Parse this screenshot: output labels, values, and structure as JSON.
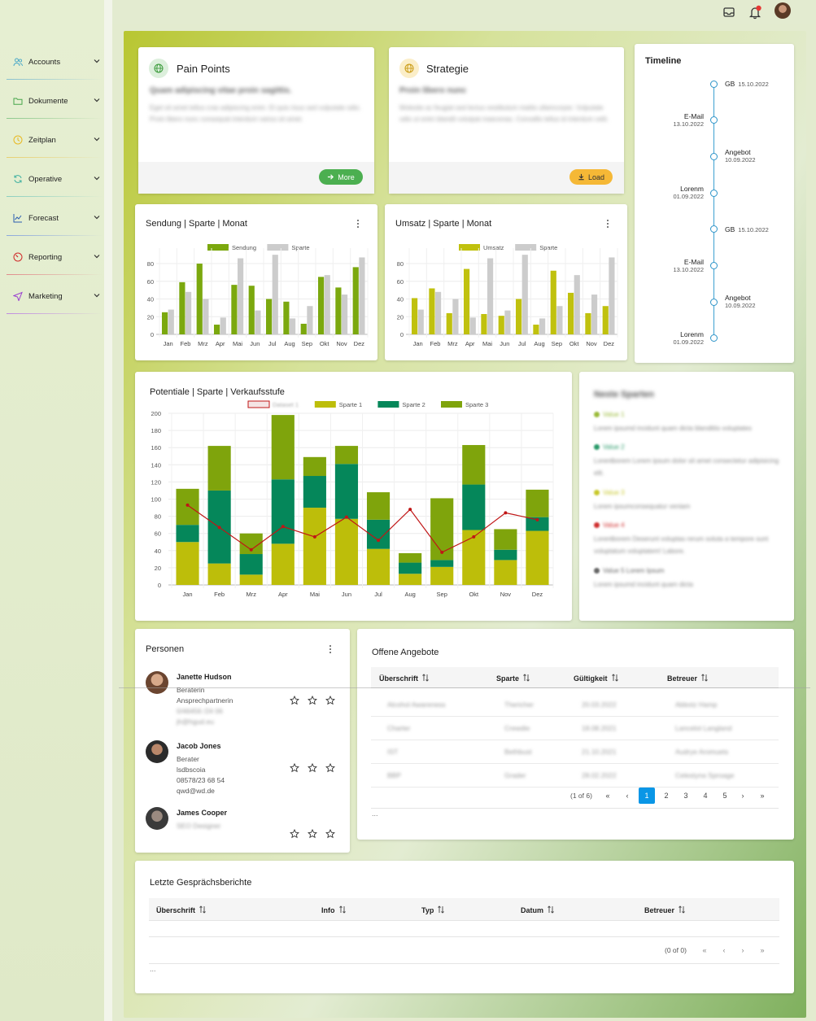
{
  "sidebar": {
    "items": [
      {
        "label": "Accounts",
        "icon": "users-icon",
        "color": "#4aa8c8"
      },
      {
        "label": "Dokumente",
        "icon": "folder-icon",
        "color": "#46a54a"
      },
      {
        "label": "Zeitplan",
        "icon": "clock-icon",
        "color": "#e8b820"
      },
      {
        "label": "Operative",
        "icon": "refresh-icon",
        "color": "#3fb0a0"
      },
      {
        "label": "Forecast",
        "icon": "chart-line-icon",
        "color": "#2a5db0"
      },
      {
        "label": "Reporting",
        "icon": "gauge-icon",
        "color": "#d02a2a"
      },
      {
        "label": "Marketing",
        "icon": "send-icon",
        "color": "#9a3fd0"
      }
    ]
  },
  "topbar": {
    "icons": [
      "inbox-icon",
      "bell-icon",
      "avatar"
    ]
  },
  "pain_points": {
    "title": "Pain Points",
    "subtitle": "Quam adipiscing vitae proin sagittis.",
    "body": "Eget sit amet tellus cras adipiscing enim. Et quis risus sed vulputate odio. Proin libero nunc consequat interdum varius sit amet.",
    "button": "More"
  },
  "strategie": {
    "title": "Strategie",
    "subtitle": "Proin libero nunc",
    "body": "Molestie ac feugiat sed lectus vestibulum mattis ullamcorper. Vulputate odio ut enim blandit volutpat maecenas. Convallis tellus id interdum velit.",
    "button": "Load"
  },
  "timeline": {
    "title": "Timeline",
    "events": [
      {
        "label": "GB",
        "date": "15.10.2022",
        "side": "right"
      },
      {
        "label": "E-Mail",
        "date": "13.10.2022",
        "side": "left"
      },
      {
        "label": "Angebot",
        "date": "10.09.2022",
        "side": "right"
      },
      {
        "label": "Lorenm",
        "date": "01.09.2022",
        "side": "left"
      },
      {
        "label": "GB",
        "date": "15.10.2022",
        "side": "right"
      },
      {
        "label": "E-Mail",
        "date": "13.10.2022",
        "side": "left"
      },
      {
        "label": "Angebot",
        "date": "10.09.2022",
        "side": "right"
      },
      {
        "label": "Lorenm",
        "date": "01.09.2022",
        "side": "left"
      }
    ]
  },
  "chart_data": [
    {
      "type": "bar",
      "title": "Sendung | Sparte | Monat",
      "categories": [
        "Jan",
        "Feb",
        "Mrz",
        "Apr",
        "Mai",
        "Jun",
        "Jul",
        "Aug",
        "Sep",
        "Okt",
        "Nov",
        "Dez"
      ],
      "series": [
        {
          "name": "Sendung",
          "color": "#7ba80e",
          "values": [
            25,
            59,
            80,
            11,
            56,
            55,
            40,
            37,
            12,
            65,
            53,
            76
          ]
        },
        {
          "name": "Sparte",
          "color": "#cccccc",
          "values": [
            28,
            48,
            40,
            19,
            86,
            27,
            90,
            18,
            32,
            67,
            45,
            87
          ]
        }
      ],
      "yticks": [
        0,
        20,
        40,
        60,
        80
      ],
      "ylim": [
        0,
        92
      ]
    },
    {
      "type": "bar",
      "title": "Umsatz | Sparte | Monat",
      "categories": [
        "Jan",
        "Feb",
        "Mrz",
        "Apr",
        "Mai",
        "Jun",
        "Jul",
        "Aug",
        "Sep",
        "Okt",
        "Nov",
        "Dez"
      ],
      "series": [
        {
          "name": "Umsatz",
          "color": "#c0c10e",
          "values": [
            41,
            52,
            24,
            74,
            23,
            21,
            40,
            11,
            72,
            47,
            24,
            32
          ]
        },
        {
          "name": "Sparte",
          "color": "#cccccc",
          "values": [
            28,
            48,
            40,
            19,
            86,
            27,
            90,
            18,
            32,
            67,
            45,
            87
          ]
        }
      ],
      "yticks": [
        0,
        20,
        40,
        60,
        80
      ],
      "ylim": [
        0,
        92
      ]
    },
    {
      "type": "bar",
      "stacked": true,
      "title": "Potentiale | Sparte | Verkaufsstufe",
      "categories": [
        "Jan",
        "Feb",
        "Mrz",
        "Apr",
        "Mai",
        "Jun",
        "Jul",
        "Aug",
        "Sep",
        "Okt",
        "Nov",
        "Dez"
      ],
      "series": [
        {
          "name": "Dataset 1",
          "type": "line",
          "color": "#c01616",
          "values": [
            93,
            67,
            41,
            68,
            56,
            79,
            52,
            88,
            38,
            56,
            84,
            76
          ]
        },
        {
          "name": "Sparte 1",
          "color": "#bdbe0a",
          "values": [
            50,
            25,
            12,
            48,
            90,
            77,
            42,
            13,
            21,
            64,
            29,
            63
          ]
        },
        {
          "name": "Sparte 2",
          "color": "#05875a",
          "values": [
            20,
            85,
            24,
            75,
            37,
            64,
            34,
            13,
            8,
            53,
            12,
            16
          ]
        },
        {
          "name": "Sparte 3",
          "color": "#7fa40c",
          "values": [
            42,
            52,
            24,
            75,
            22,
            21,
            32,
            11,
            72,
            46,
            24,
            32
          ]
        }
      ],
      "yticks": [
        0,
        20,
        40,
        60,
        80,
        100,
        120,
        140,
        160,
        180,
        200
      ],
      "ylim": [
        0,
        200
      ]
    }
  ],
  "news": {
    "title": "Neste Sparten",
    "items": [
      {
        "label": "Value 1",
        "color": "#9bbb3a",
        "text": "Lorem ipsumd incidunt quam dicta blanditiis voluptates"
      },
      {
        "label": "Value 2",
        "color": "#2a9a6a",
        "text": "Lorentborem Lorem ipsum dolor sit amet consectetur adipisicing elit."
      },
      {
        "label": "Value 3",
        "color": "#c8c82a",
        "text": "Lorem ipsumconsequatur veniam"
      },
      {
        "label": "Value 4",
        "color": "#d03030",
        "text": "Lorentborem Deserunt voluptas rerum soluta a tempore sunt voluptatum voluptatem! Labore."
      },
      {
        "label": "Value 5 Lorem Ipsum",
        "color": "#666666",
        "text": "Lorem ipsumd incidunt quam dicta"
      }
    ]
  },
  "personen": {
    "title": "Personen",
    "people": [
      {
        "name": "Janette Hudson",
        "lines": [
          "Beraterin",
          "Ansprechpartnerin",
          "0/46456 /24 06",
          "jh@hgud.eu"
        ],
        "blurred_from": 2
      },
      {
        "name": "Jacob Jones",
        "lines": [
          "Berater",
          "lsdbscoia",
          "08578/23 68 54",
          "qwd@wd.de"
        ],
        "blurred_from": 4
      },
      {
        "name": "James Cooper",
        "lines": [
          "SEO Designer"
        ],
        "blurred_from": 0
      }
    ]
  },
  "angebote": {
    "title": "Offene Angebote",
    "columns": [
      "Überschrift",
      "Sparte",
      "Gültigkeit",
      "Betreuer"
    ],
    "rows": [
      [
        "Alcohol Awareness",
        "Thericher",
        "20.03.2022",
        "Abbotz Hamp"
      ],
      [
        "Charter",
        "Crewdie",
        "18.08.2021",
        "Lancelot Langland"
      ],
      [
        "IST",
        "Bethbust",
        "21.10.2021",
        "Audrye Aromuets"
      ],
      [
        "BBP",
        "Grader",
        "28.02.2022",
        "Celestyna Sproage"
      ]
    ],
    "pagination": {
      "summary": "(1 of 6)",
      "pages": [
        "1",
        "2",
        "3",
        "4",
        "5"
      ],
      "current": "1"
    },
    "footer": "..."
  },
  "berichte": {
    "title": "Letzte Gesprächsberichte",
    "columns": [
      "Überschrift",
      "Info",
      "Typ",
      "Datum",
      "Betreuer"
    ],
    "pagination": {
      "summary": "(0 of 0)"
    },
    "footer": "..."
  }
}
